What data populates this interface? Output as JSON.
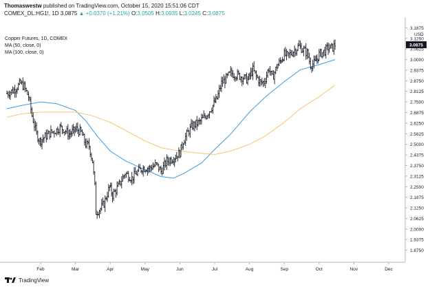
{
  "header": {
    "author": "Thomaswestw",
    "published_text": "published on TradingView.com, October 15, 2020 15:51:06 CDT",
    "symbol": "COMEX_DL:HG1!, 1D",
    "last_price": "3.0875",
    "change": "▲ +0.0370 (+1.21%)",
    "ohlc": {
      "o_label": "O:",
      "o": "3.0505",
      "h_label": "H:",
      "h": "3.0935",
      "l_label": "L:",
      "l": "3.0245",
      "c_label": "C:",
      "c": "3.0875"
    }
  },
  "legend": {
    "title": "Copper Futures, 1D, COMEX",
    "ma50": "MA (50, close, 0)",
    "ma100": "MA (100, close, 0)"
  },
  "footer": {
    "brand": "TradingView"
  },
  "colors": {
    "candle": "#131722",
    "ma50": "#3c9be0",
    "ma100": "#f9c46a",
    "up": "#26a69a",
    "price_tag": "#131722"
  },
  "chart_data": {
    "type": "line",
    "title": "Copper Futures, 1D, COMEX",
    "ylabel": "USD",
    "ylim": [
      1.8125,
      3.25
    ],
    "x_ticks": [
      "Feb",
      "Mar",
      "Apr",
      "May",
      "Jun",
      "Jul",
      "Aug",
      "Sep",
      "Oct",
      "Nov",
      "Dec"
    ],
    "y_ticks": [
      "3.1875",
      "3.1250",
      "3.0625",
      "3.0000",
      "2.9375",
      "2.8750",
      "2.8125",
      "2.7500",
      "2.6875",
      "2.6250",
      "2.5625",
      "2.5000",
      "2.4375",
      "2.3750",
      "2.3125",
      "2.2500",
      "2.1875",
      "2.1250",
      "2.0625",
      "2.0000",
      "1.9375",
      "1.8750"
    ],
    "current_price": "3.0875",
    "price_path": [
      [
        "2020-01-02",
        2.8
      ],
      [
        "2020-01-08",
        2.82
      ],
      [
        "2020-01-14",
        2.86
      ],
      [
        "2020-01-17",
        2.84
      ],
      [
        "2020-01-21",
        2.78
      ],
      [
        "2020-01-24",
        2.67
      ],
      [
        "2020-01-28",
        2.56
      ],
      [
        "2020-01-31",
        2.52
      ],
      [
        "2020-02-04",
        2.54
      ],
      [
        "2020-02-10",
        2.57
      ],
      [
        "2020-02-14",
        2.58
      ],
      [
        "2020-02-18",
        2.6
      ],
      [
        "2020-02-21",
        2.59
      ],
      [
        "2020-02-26",
        2.56
      ],
      [
        "2020-03-02",
        2.59
      ],
      [
        "2020-03-06",
        2.57
      ],
      [
        "2020-03-10",
        2.5
      ],
      [
        "2020-03-13",
        2.49
      ],
      [
        "2020-03-16",
        2.4
      ],
      [
        "2020-03-18",
        2.25
      ],
      [
        "2020-03-19",
        2.1
      ],
      [
        "2020-03-23",
        2.12
      ],
      [
        "2020-03-26",
        2.15
      ],
      [
        "2020-03-31",
        2.25
      ],
      [
        "2020-04-03",
        2.2
      ],
      [
        "2020-04-08",
        2.25
      ],
      [
        "2020-04-14",
        2.33
      ],
      [
        "2020-04-20",
        2.3
      ],
      [
        "2020-04-24",
        2.33
      ],
      [
        "2020-04-29",
        2.36
      ],
      [
        "2020-05-05",
        2.36
      ],
      [
        "2020-05-11",
        2.38
      ],
      [
        "2020-05-15",
        2.34
      ],
      [
        "2020-05-20",
        2.4
      ],
      [
        "2020-05-26",
        2.42
      ],
      [
        "2020-06-01",
        2.45
      ],
      [
        "2020-06-04",
        2.52
      ],
      [
        "2020-06-09",
        2.58
      ],
      [
        "2020-06-12",
        2.61
      ],
      [
        "2020-06-18",
        2.63
      ],
      [
        "2020-06-24",
        2.67
      ],
      [
        "2020-06-30",
        2.73
      ],
      [
        "2020-07-03",
        2.77
      ],
      [
        "2020-07-07",
        2.86
      ],
      [
        "2020-07-10",
        2.88
      ],
      [
        "2020-07-15",
        2.92
      ],
      [
        "2020-07-20",
        2.91
      ],
      [
        "2020-07-24",
        2.9
      ],
      [
        "2020-07-30",
        2.88
      ],
      [
        "2020-08-04",
        2.94
      ],
      [
        "2020-08-07",
        2.9
      ],
      [
        "2020-08-11",
        2.86
      ],
      [
        "2020-08-14",
        2.87
      ],
      [
        "2020-08-18",
        2.95
      ],
      [
        "2020-08-21",
        2.89
      ],
      [
        "2020-08-25",
        2.96
      ],
      [
        "2020-08-28",
        2.99
      ],
      [
        "2020-09-01",
        3.03
      ],
      [
        "2020-09-04",
        3.02
      ],
      [
        "2020-09-09",
        3.05
      ],
      [
        "2020-09-14",
        3.08
      ],
      [
        "2020-09-17",
        3.06
      ],
      [
        "2020-09-21",
        3.04
      ],
      [
        "2020-09-24",
        2.97
      ],
      [
        "2020-09-28",
        2.98
      ],
      [
        "2020-10-01",
        3.03
      ],
      [
        "2020-10-06",
        3.05
      ],
      [
        "2020-10-09",
        3.07
      ],
      [
        "2020-10-13",
        3.07
      ],
      [
        "2020-10-15",
        3.0875
      ]
    ],
    "series": [
      {
        "name": "MA (50, close, 0)",
        "points": [
          [
            "2020-01-02",
            2.71
          ],
          [
            "2020-01-15",
            2.73
          ],
          [
            "2020-02-01",
            2.75
          ],
          [
            "2020-02-15",
            2.74
          ],
          [
            "2020-03-01",
            2.7
          ],
          [
            "2020-03-10",
            2.64
          ],
          [
            "2020-03-20",
            2.55
          ],
          [
            "2020-04-01",
            2.46
          ],
          [
            "2020-04-15",
            2.4
          ],
          [
            "2020-05-01",
            2.35
          ],
          [
            "2020-05-15",
            2.31
          ],
          [
            "2020-05-26",
            2.3
          ],
          [
            "2020-06-05",
            2.33
          ],
          [
            "2020-06-20",
            2.39
          ],
          [
            "2020-07-01",
            2.47
          ],
          [
            "2020-07-15",
            2.56
          ],
          [
            "2020-08-01",
            2.69
          ],
          [
            "2020-08-15",
            2.78
          ],
          [
            "2020-09-01",
            2.87
          ],
          [
            "2020-09-15",
            2.94
          ],
          [
            "2020-10-01",
            2.97
          ],
          [
            "2020-10-15",
            3.0
          ]
        ]
      },
      {
        "name": "MA (100, close, 0)",
        "points": [
          [
            "2020-01-02",
            2.66
          ],
          [
            "2020-01-15",
            2.68
          ],
          [
            "2020-02-01",
            2.69
          ],
          [
            "2020-02-15",
            2.69
          ],
          [
            "2020-03-01",
            2.69
          ],
          [
            "2020-03-15",
            2.67
          ],
          [
            "2020-04-01",
            2.63
          ],
          [
            "2020-04-15",
            2.58
          ],
          [
            "2020-05-01",
            2.52
          ],
          [
            "2020-05-15",
            2.48
          ],
          [
            "2020-06-01",
            2.46
          ],
          [
            "2020-06-15",
            2.45
          ],
          [
            "2020-07-01",
            2.44
          ],
          [
            "2020-07-15",
            2.46
          ],
          [
            "2020-08-01",
            2.5
          ],
          [
            "2020-08-15",
            2.55
          ],
          [
            "2020-09-01",
            2.63
          ],
          [
            "2020-09-15",
            2.71
          ],
          [
            "2020-10-01",
            2.78
          ],
          [
            "2020-10-15",
            2.85
          ]
        ]
      }
    ]
  }
}
